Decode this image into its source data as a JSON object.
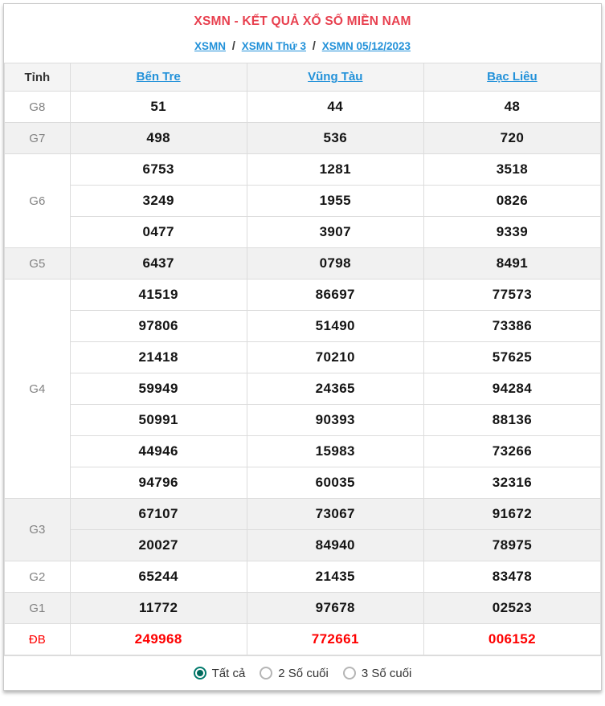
{
  "header": {
    "title": "XSMN - KẾT QUẢ XỔ SỐ MIỀN NAM",
    "separator": "/",
    "breadcrumb": [
      {
        "label": "XSMN"
      },
      {
        "label": "XSMN Thứ 3"
      },
      {
        "label": "XSMN 05/12/2023"
      }
    ]
  },
  "table": {
    "corner_label": "Tỉnh",
    "provinces": [
      "Bến Tre",
      "Vũng Tàu",
      "Bạc Liêu"
    ],
    "prize_groups": [
      {
        "label": "G8",
        "shaded": false,
        "special": false,
        "rows": [
          [
            "51",
            "44",
            "48"
          ]
        ]
      },
      {
        "label": "G7",
        "shaded": true,
        "special": false,
        "rows": [
          [
            "498",
            "536",
            "720"
          ]
        ]
      },
      {
        "label": "G6",
        "shaded": false,
        "special": false,
        "rows": [
          [
            "6753",
            "1281",
            "3518"
          ],
          [
            "3249",
            "1955",
            "0826"
          ],
          [
            "0477",
            "3907",
            "9339"
          ]
        ]
      },
      {
        "label": "G5",
        "shaded": true,
        "special": false,
        "rows": [
          [
            "6437",
            "0798",
            "8491"
          ]
        ]
      },
      {
        "label": "G4",
        "shaded": false,
        "special": false,
        "rows": [
          [
            "41519",
            "86697",
            "77573"
          ],
          [
            "97806",
            "51490",
            "73386"
          ],
          [
            "21418",
            "70210",
            "57625"
          ],
          [
            "59949",
            "24365",
            "94284"
          ],
          [
            "50991",
            "90393",
            "88136"
          ],
          [
            "44946",
            "15983",
            "73266"
          ],
          [
            "94796",
            "60035",
            "32316"
          ]
        ]
      },
      {
        "label": "G3",
        "shaded": true,
        "special": false,
        "rows": [
          [
            "67107",
            "73067",
            "91672"
          ],
          [
            "20027",
            "84940",
            "78975"
          ]
        ]
      },
      {
        "label": "G2",
        "shaded": false,
        "special": false,
        "rows": [
          [
            "65244",
            "21435",
            "83478"
          ]
        ]
      },
      {
        "label": "G1",
        "shaded": true,
        "special": false,
        "rows": [
          [
            "11772",
            "97678",
            "02523"
          ]
        ]
      },
      {
        "label": "ĐB",
        "shaded": false,
        "special": true,
        "rows": [
          [
            "249968",
            "772661",
            "006152"
          ]
        ]
      }
    ]
  },
  "footer": {
    "options": [
      {
        "label": "Tất cả",
        "selected": true
      },
      {
        "label": "2 Số cuối",
        "selected": false
      },
      {
        "label": "3 Số cuối",
        "selected": false
      }
    ]
  },
  "colors": {
    "title_red": "#e8404f",
    "link_blue": "#2291d9",
    "special_red": "#fe0000",
    "radio_teal": "#00796b",
    "shaded_row": "#f1f1f1"
  }
}
